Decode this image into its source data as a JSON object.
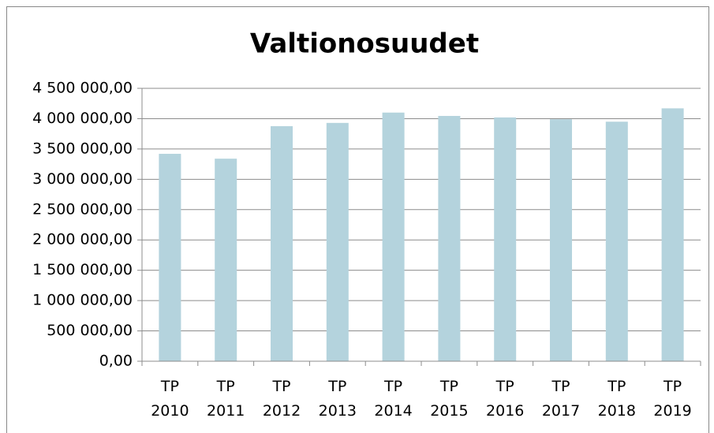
{
  "chart_data": {
    "type": "bar",
    "title": "Valtionosuudet",
    "categories": [
      "TP 2010",
      "TP 2011",
      "TP 2012",
      "TP 2013",
      "TP 2014",
      "TP 2015",
      "TP 2016",
      "TP 2017",
      "TP 2018",
      "TP 2019"
    ],
    "values": [
      3420000,
      3340000,
      3876000,
      3930000,
      4100000,
      4045000,
      4020000,
      3990000,
      3950000,
      4170000
    ],
    "color": "#b4d3dd",
    "ylim": [
      0,
      4500000
    ],
    "yticks": [
      {
        "value": 0,
        "label": "0,00"
      },
      {
        "value": 500000,
        "label": "500 000,00"
      },
      {
        "value": 1000000,
        "label": "1 000 000,00"
      },
      {
        "value": 1500000,
        "label": "1 500 000,00"
      },
      {
        "value": 2000000,
        "label": "2 000 000,00"
      },
      {
        "value": 2500000,
        "label": "2 500 000,00"
      },
      {
        "value": 3000000,
        "label": "3 000 000,00"
      },
      {
        "value": 3500000,
        "label": "3 500 000,00"
      },
      {
        "value": 4000000,
        "label": "4 000 000,00"
      },
      {
        "value": 4500000,
        "label": "4 500 000,00"
      }
    ],
    "grid": true
  }
}
